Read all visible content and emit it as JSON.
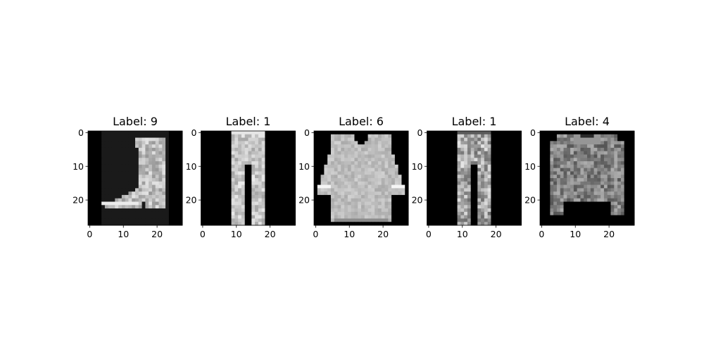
{
  "chart_data": [
    {
      "type": "heatmap",
      "title": "Label: 9",
      "colormap": "gray",
      "image_shape": [
        28,
        28
      ],
      "xticks": [
        0,
        10,
        20
      ],
      "yticks": [
        0,
        10,
        20
      ],
      "xlim": [
        -0.5,
        27.5
      ],
      "ylim": [
        27.5,
        -0.5
      ],
      "content": "ankle boot"
    },
    {
      "type": "heatmap",
      "title": "Label: 1",
      "colormap": "gray",
      "image_shape": [
        28,
        28
      ],
      "xticks": [
        0,
        10,
        20
      ],
      "yticks": [
        0,
        10,
        20
      ],
      "xlim": [
        -0.5,
        27.5
      ],
      "ylim": [
        27.5,
        -0.5
      ],
      "content": "trouser"
    },
    {
      "type": "heatmap",
      "title": "Label: 6",
      "colormap": "gray",
      "image_shape": [
        28,
        28
      ],
      "xticks": [
        0,
        10,
        20
      ],
      "yticks": [
        0,
        10,
        20
      ],
      "xlim": [
        -0.5,
        27.5
      ],
      "ylim": [
        27.5,
        -0.5
      ],
      "content": "shirt"
    },
    {
      "type": "heatmap",
      "title": "Label: 1",
      "colormap": "gray",
      "image_shape": [
        28,
        28
      ],
      "xticks": [
        0,
        10,
        20
      ],
      "yticks": [
        0,
        10,
        20
      ],
      "xlim": [
        -0.5,
        27.5
      ],
      "ylim": [
        27.5,
        -0.5
      ],
      "content": "trouser"
    },
    {
      "type": "heatmap",
      "title": "Label: 4",
      "colormap": "gray",
      "image_shape": [
        28,
        28
      ],
      "xticks": [
        0,
        10,
        20
      ],
      "yticks": [
        0,
        10,
        20
      ],
      "xlim": [
        -0.5,
        27.5
      ],
      "ylim": [
        27.5,
        -0.5
      ],
      "content": "coat"
    }
  ]
}
